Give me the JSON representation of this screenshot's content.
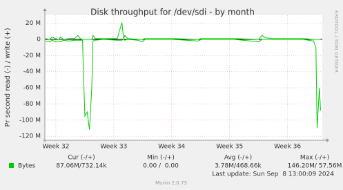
{
  "chart_data": {
    "type": "line",
    "title": "Disk throughput for /dev/sdi - by month",
    "ylabel": "Pr second read (-) / write (+)",
    "side_text": "RRDTOOL / TOBI OETIKER",
    "footer": "Munin 2.0.73",
    "last_update": "Last update: Sun Sep  8 13:00:09 2024",
    "xlim": [
      31.81,
      36.6
    ],
    "xticks": [
      {
        "value": 32,
        "label": "Week 32"
      },
      {
        "value": 33,
        "label": "Week 33"
      },
      {
        "value": 34,
        "label": "Week 34"
      },
      {
        "value": 35,
        "label": "Week 35"
      },
      {
        "value": 36,
        "label": "Week 36"
      }
    ],
    "ylim": [
      -125,
      30
    ],
    "yticks": [
      {
        "value": -120,
        "label": "-120 M"
      },
      {
        "value": -100,
        "label": "-100 M"
      },
      {
        "value": -80,
        "label": "-80 M"
      },
      {
        "value": -60,
        "label": "-60 M"
      },
      {
        "value": -40,
        "label": "-40 M"
      },
      {
        "value": -20,
        "label": "-20 M"
      },
      0,
      {
        "value": 20,
        "label": "20 M"
      }
    ],
    "grid": true,
    "x": [
      31.82,
      31.89,
      31.94,
      31.99,
      32.05,
      32.08,
      32.13,
      32.23,
      32.32,
      32.38,
      32.42,
      32.46,
      32.5,
      32.54,
      32.58,
      32.62,
      32.64,
      32.68,
      32.82,
      33.06,
      33.14,
      33.17,
      33.19,
      33.24,
      33.42,
      33.49,
      33.54,
      34.01,
      34.46,
      34.51,
      35.08,
      35.5,
      35.56,
      35.62,
      35.74,
      36.27,
      36.45,
      36.49,
      36.51,
      36.55,
      36.57
    ],
    "series": [
      {
        "name": "Bytes",
        "color": "#00cc00",
        "values": [
          1,
          0,
          3,
          1,
          0,
          3,
          0,
          1,
          1,
          5,
          1,
          0,
          0,
          0,
          0,
          0,
          5,
          1,
          1,
          1,
          21,
          1,
          5,
          1,
          0,
          0,
          1,
          1,
          0,
          1,
          1,
          0,
          5,
          2,
          1,
          1,
          0,
          0,
          0,
          0,
          0
        ]
      },
      {
        "color": "#00cc00",
        "values": [
          -2,
          -3,
          -1,
          -3,
          -2,
          -3,
          -1,
          -2,
          -1,
          -1,
          -1,
          -1,
          -95,
          -90,
          -112,
          -60,
          -2,
          -1,
          0,
          -1,
          -1,
          0,
          -1,
          0,
          -1,
          -3,
          0,
          0,
          -2,
          0,
          0,
          -3,
          0,
          0,
          0,
          0,
          -2,
          -10,
          -110,
          -60,
          -88
        ]
      }
    ],
    "summary": {
      "headers": [
        "Cur (-/+)",
        "Min (-/+)",
        "Avg (-/+)",
        "Max (-/+)"
      ],
      "values": [
        "87.06M/732.14k",
        "0.00 /  0.00",
        "3.78M/468.66k",
        "146.20M/ 57.56M"
      ]
    }
  }
}
